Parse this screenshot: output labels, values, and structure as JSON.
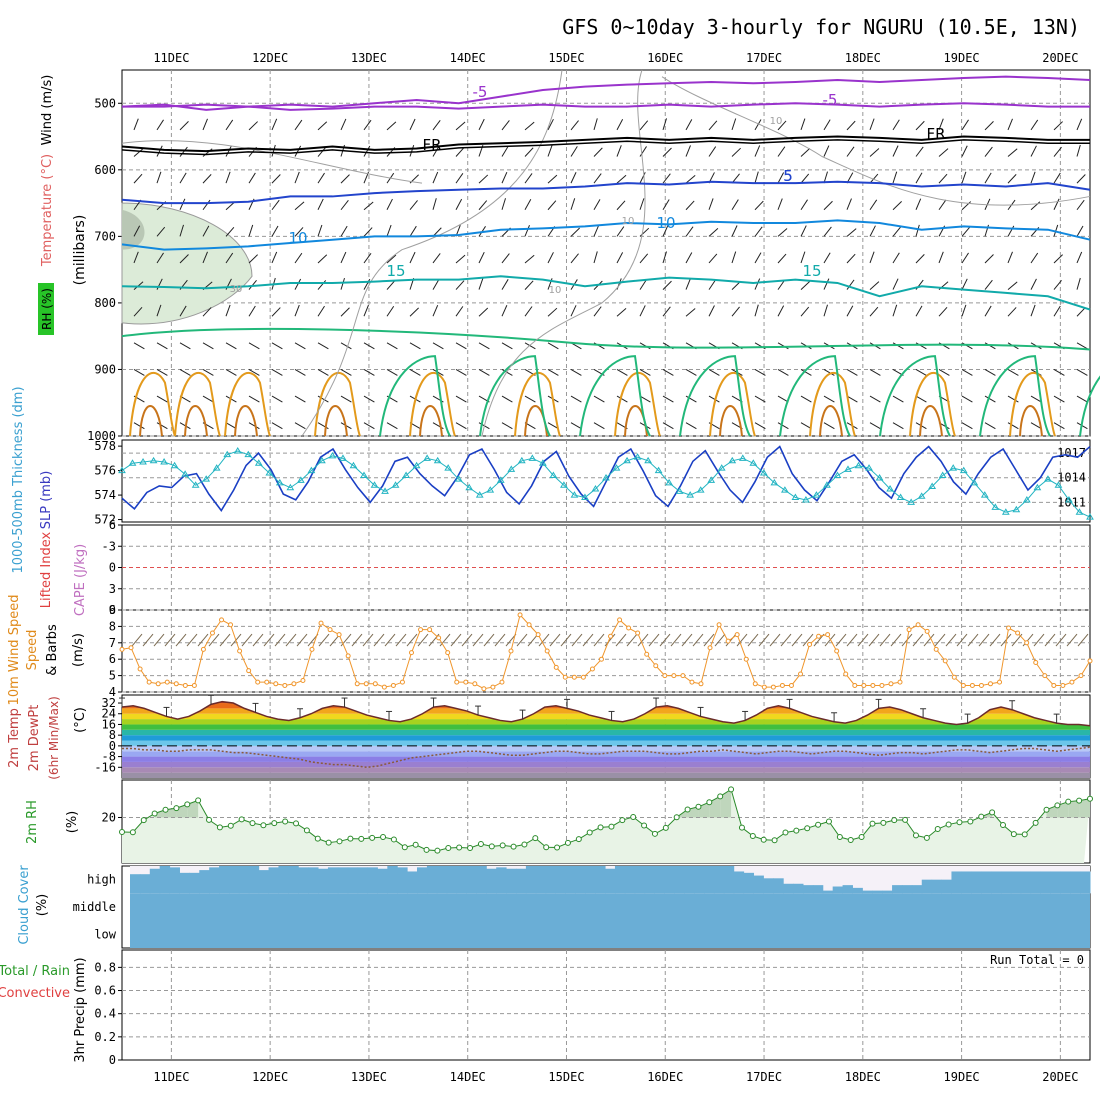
{
  "chart_data": {
    "type": "line",
    "title": "GFS 0~10day 3-hourly for NGURU (10.5E, 13N)",
    "date_labels": [
      "11DEC",
      "12DEC",
      "13DEC",
      "14DEC",
      "15DEC",
      "16DEC",
      "17DEC",
      "18DEC",
      "19DEC",
      "20DEC"
    ],
    "time_range_days": [
      10.5,
      20.3
    ],
    "panels": {
      "upper_air": {
        "left_labels": [
          "RH (%)",
          "Temperature (°C)",
          "Wind (m/s)"
        ],
        "ylabel": "(millibars)",
        "pressure_ticks": [
          500,
          600,
          700,
          800,
          900,
          1000
        ],
        "ylim": [
          1000,
          450
        ],
        "contour_labels": [
          "-5",
          "FR",
          "5",
          "10",
          "15",
          "-5",
          "FR",
          "5",
          "10",
          "15",
          "10",
          "10",
          "10",
          "30"
        ],
        "isotherms": [
          {
            "name": "-5",
            "color": "#9933cc",
            "pressure": [
              505,
              502,
              510,
              505,
              502,
              505,
              500,
              495,
              500,
              490,
              480,
              475,
              472,
              470,
              468,
              470,
              468,
              465,
              468,
              465,
              462,
              460,
              462,
              465
            ]
          },
          {
            "name": "-5b",
            "color": "#9933cc",
            "pressure": [
              505,
              505,
              502,
              505,
              510,
              508,
              505,
              505,
              508,
              505,
              502,
              505,
              505,
              502,
              505,
              502,
              500,
              502,
              505,
              502,
              500,
              502,
              505,
              505
            ]
          },
          {
            "name": "FR",
            "color": "#000000",
            "pressure": [
              565,
              570,
              572,
              568,
              570,
              565,
              570,
              568,
              562,
              560,
              558,
              555,
              552,
              555,
              552,
              555,
              552,
              550,
              552,
              555,
              550,
              552,
              555,
              555
            ]
          },
          {
            "name": "5",
            "color": "#2244cc",
            "pressure": [
              645,
              650,
              650,
              648,
              640,
              640,
              635,
              632,
              630,
              628,
              628,
              625,
              620,
              622,
              618,
              620,
              620,
              618,
              620,
              625,
              622,
              625,
              620,
              630
            ]
          },
          {
            "name": "10",
            "color": "#1188dd",
            "pressure": [
              712,
              720,
              718,
              715,
              710,
              705,
              700,
              700,
              698,
              690,
              688,
              685,
              680,
              682,
              678,
              680,
              680,
              676,
              680,
              690,
              685,
              688,
              690,
              705
            ]
          },
          {
            "name": "15",
            "color": "#11aaaa",
            "pressure": [
              775,
              776,
              778,
              775,
              770,
              770,
              768,
              765,
              765,
              760,
              765,
              775,
              768,
              762,
              765,
              770,
              765,
              770,
              790,
              775,
              780,
              785,
              790,
              810
            ]
          }
        ]
      },
      "thickness_slp": {
        "left_labels": [
          "1000-500mb Thickness (dm)",
          "SLP (mb)"
        ],
        "thickness_ticks": [
          572,
          574,
          576,
          578
        ],
        "slp_ticks": [
          1011,
          1014,
          1017
        ],
        "thickness_ylim": [
          571.8,
          578.5
        ],
        "slp_ylim": [
          1008.6,
          1018.6
        ],
        "series": [
          {
            "name": "SLP",
            "color": "#1a3fc4",
            "values": [
              1011.5,
              1010.2,
              1012.2,
              1013.0,
              1012.8,
              1014.2,
              1014.5,
              1012.0,
              1010.0,
              1012.5,
              1015.5,
              1017.0,
              1015.0,
              1012.0,
              1011.3,
              1013.5,
              1016.5,
              1017.5,
              1015.0,
              1012.8,
              1011.0,
              1013.0,
              1016.0,
              1016.5,
              1014.5,
              1013.0,
              1011.8,
              1014.0,
              1016.8,
              1017.5,
              1015.0,
              1012.2,
              1010.8,
              1013.0,
              1016.0,
              1017.2,
              1014.2,
              1012.0,
              1010.5,
              1013.5,
              1016.5,
              1017.5,
              1014.8,
              1011.8,
              1010.5,
              1013.0,
              1016.0,
              1017.3,
              1014.8,
              1012.5,
              1011.0,
              1013.5,
              1016.5,
              1017.8,
              1014.5,
              1012.5,
              1011.2,
              1013.5,
              1016.0,
              1016.8,
              1015.0,
              1012.8,
              1011.5,
              1014.5,
              1016.5,
              1017.8,
              1016.0,
              1013.5,
              1012.0,
              1014.5,
              1016.5,
              1017.5,
              1015.0,
              1012.5,
              1014.0,
              1016.5,
              1016.8,
              1016.5,
              1017.8
            ]
          },
          {
            "name": "Thickness",
            "color": "#22b4c2",
            "marker": "triangle",
            "values": [
              576.0,
              576.6,
              576.7,
              576.8,
              576.7,
              576.4,
              575.7,
              574.8,
              575.3,
              576.2,
              577.3,
              577.6,
              577.3,
              576.6,
              575.8,
              575.0,
              574.6,
              575.2,
              576.0,
              576.8,
              577.2,
              577.0,
              576.4,
              575.6,
              574.8,
              574.3,
              574.8,
              575.6,
              576.4,
              577.0,
              576.8,
              576.2,
              575.3,
              574.6,
              574.0,
              574.4,
              575.2,
              576.1,
              576.8,
              577.0,
              576.6,
              575.6,
              574.8,
              574.0,
              573.8,
              574.5,
              575.4,
              576.2,
              576.8,
              577.1,
              576.8,
              576.0,
              575.0,
              574.3,
              574.0,
              574.4,
              575.2,
              576.2,
              576.8,
              577.0,
              576.6,
              575.8,
              575.0,
              574.4,
              573.8,
              573.6,
              574.0,
              574.8,
              575.6,
              576.1,
              576.4,
              576.2,
              575.4,
              574.5,
              573.8,
              573.4,
              573.9,
              574.7,
              575.6,
              576.2,
              576.0,
              575.0,
              574.0,
              573.0,
              572.6,
              572.8,
              573.6,
              574.6,
              575.3,
              574.8,
              573.6,
              572.6,
              572.2
            ]
          }
        ]
      },
      "lifted_index_cape": {
        "left_labels": [
          "Lifted Index",
          "CAPE (J/kg)"
        ],
        "li_ticks": [
          -6,
          -3,
          0,
          3,
          6
        ],
        "ylim": [
          6,
          -6
        ],
        "zero_line_value": 0
      },
      "wind10m": {
        "left_labels": [
          "10m Wind Speed",
          "& Barbs",
          "(m/s)"
        ],
        "ticks": [
          4,
          5,
          6,
          7,
          8,
          9
        ],
        "ylim": [
          4,
          9
        ],
        "color": "#f0962c",
        "values": [
          6.6,
          6.7,
          5.4,
          4.6,
          4.5,
          4.6,
          4.5,
          4.4,
          4.4,
          6.6,
          7.6,
          8.4,
          8.1,
          6.5,
          5.3,
          4.6,
          4.6,
          4.5,
          4.4,
          4.5,
          4.7,
          6.6,
          8.2,
          7.8,
          7.5,
          6.2,
          4.5,
          4.5,
          4.5,
          4.3,
          4.4,
          4.6,
          6.4,
          7.8,
          7.8,
          7.3,
          6.4,
          4.6,
          4.6,
          4.5,
          4.2,
          4.3,
          4.6,
          6.5,
          8.7,
          8.1,
          7.5,
          6.5,
          5.5,
          4.9,
          4.9,
          4.9,
          5.4,
          6.0,
          7.4,
          8.4,
          7.9,
          7.6,
          6.3,
          5.6,
          5.0,
          5.0,
          5.0,
          4.6,
          4.5,
          6.7,
          8.1,
          7.1,
          7.5,
          6.0,
          4.5,
          4.3,
          4.3,
          4.4,
          4.4,
          5.1,
          6.9,
          7.4,
          7.5,
          6.5,
          5.1,
          4.4,
          4.4,
          4.4,
          4.4,
          4.5,
          4.6,
          7.8,
          8.1,
          7.7,
          6.6,
          5.9,
          4.9,
          4.4,
          4.4,
          4.4,
          4.5,
          4.6,
          7.9,
          7.6,
          7.0,
          5.8,
          5.0,
          4.4,
          4.4,
          4.6,
          5.0,
          5.9
        ]
      },
      "temp2m": {
        "left_labels": [
          "2m Temp",
          "2m DewPt",
          "(6hr Min/Max)",
          "(°C)"
        ],
        "ticks": [
          -16,
          -8,
          0,
          8,
          16,
          24,
          32
        ],
        "ylim": [
          -24,
          38
        ],
        "temp_values": [
          29,
          30,
          28,
          25,
          22,
          20,
          22,
          26,
          31,
          33,
          32,
          28,
          25,
          22,
          20,
          19,
          21,
          24,
          28,
          30,
          29,
          26,
          23,
          21,
          19,
          18,
          20,
          24,
          29,
          30,
          28,
          26,
          23,
          21,
          19,
          18,
          20,
          24,
          29,
          30,
          28,
          26,
          23,
          21,
          19,
          18,
          20,
          24,
          29,
          30,
          28,
          25,
          22,
          20,
          18,
          17,
          19,
          23,
          28,
          30,
          28,
          25,
          22,
          20,
          18,
          17,
          19,
          23,
          28,
          29,
          27,
          24,
          21,
          19,
          17,
          16,
          17,
          21,
          27,
          29,
          27,
          24,
          21,
          19,
          17,
          16,
          16,
          15
        ],
        "dewpt_values": [
          -2,
          -2,
          -3,
          -3,
          -4,
          -4,
          -3,
          -3,
          -3,
          -4,
          -5,
          -5,
          -6,
          -7,
          -8,
          -9,
          -10,
          -12,
          -13,
          -14,
          -14,
          -15,
          -16,
          -15,
          -13,
          -11,
          -9,
          -8,
          -7,
          -6,
          -5,
          -4,
          -4,
          -5,
          -6,
          -7,
          -7,
          -6,
          -5,
          -4,
          -4,
          -5,
          -6,
          -6,
          -5,
          -4,
          -4,
          -4,
          -5,
          -6,
          -6,
          -5,
          -4,
          -4,
          -3,
          -4,
          -5,
          -6,
          -5,
          -4,
          -4,
          -5,
          -6,
          -5,
          -4,
          -4,
          -5,
          -6,
          -7,
          -6,
          -5,
          -5,
          -6,
          -5,
          -4,
          -3,
          -3,
          -4,
          -5,
          -4,
          -3,
          -2,
          -2,
          -3,
          -4,
          -3,
          -2,
          -1
        ]
      },
      "rh2m": {
        "left_labels": [
          "2m RH",
          "(%)"
        ],
        "ticks": [
          20
        ],
        "ylim": [
          3,
          34
        ],
        "color": "#2a8a2a",
        "values": [
          14.6,
          14.5,
          19.0,
          21.5,
          22.9,
          23.5,
          24.9,
          26.4,
          19.1,
          16.3,
          16.9,
          19.3,
          17.9,
          17.1,
          17.9,
          18.5,
          17.8,
          15.2,
          12.1,
          10.6,
          11.1,
          12.1,
          12.0,
          12.4,
          12.7,
          11.8,
          8.9,
          9.8,
          7.9,
          7.6,
          8.6,
          8.8,
          8.6,
          10.1,
          9.2,
          9.6,
          9.1,
          9.9,
          12.3,
          8.9,
          8.8,
          10.5,
          11.9,
          14.4,
          16.3,
          16.6,
          19.0,
          20.2,
          17.0,
          13.9,
          16.1,
          20.1,
          23.0,
          24.0,
          25.7,
          27.9,
          30.5,
          16.2,
          13.1,
          11.7,
          11.5,
          14.4,
          15.1,
          16.0,
          17.3,
          18.5,
          12.7,
          11.6,
          12.7,
          17.7,
          18.0,
          19.0,
          19.1,
          13.3,
          12.4,
          15.7,
          17.4,
          18.2,
          18.5,
          20.3,
          21.9,
          17.2,
          13.8,
          13.7,
          18.0,
          22.9,
          24.5,
          25.9,
          26.3,
          27.0
        ]
      },
      "cloud_cover": {
        "left_labels": [
          "Cloud Cover",
          "(%)"
        ],
        "level_labels": [
          "high",
          "middle",
          "low"
        ],
        "high_pct": [
          70,
          70,
          90,
          100,
          95,
          75,
          75,
          85,
          95,
          100,
          100,
          100,
          100,
          85,
          95,
          100,
          100,
          95,
          95,
          90,
          95,
          95,
          95,
          95,
          95,
          90,
          100,
          95,
          80,
          95,
          100,
          100,
          100,
          100,
          100,
          100,
          90,
          95,
          90,
          90,
          100,
          100,
          100,
          100,
          100,
          100,
          100,
          100,
          90,
          100,
          100,
          100,
          100,
          100,
          100,
          100,
          100,
          100,
          100,
          100,
          100,
          80,
          75,
          65,
          55,
          55,
          35,
          35,
          30,
          30,
          10,
          25,
          30,
          20,
          10,
          10,
          10,
          30,
          30,
          30,
          50,
          50,
          50,
          80,
          80,
          80,
          80,
          80,
          80,
          80,
          80,
          80,
          80,
          80,
          80,
          80,
          80
        ]
      },
      "precip": {
        "left_labels": [
          "Total / Rain",
          "Convective",
          "3hr Precip (mm)"
        ],
        "ticks": [
          0,
          0.2,
          0.4,
          0.6,
          0.8
        ],
        "ylim": [
          0,
          0.95
        ],
        "run_total_label": "Run Total = 0",
        "values": []
      }
    },
    "grid": true
  }
}
